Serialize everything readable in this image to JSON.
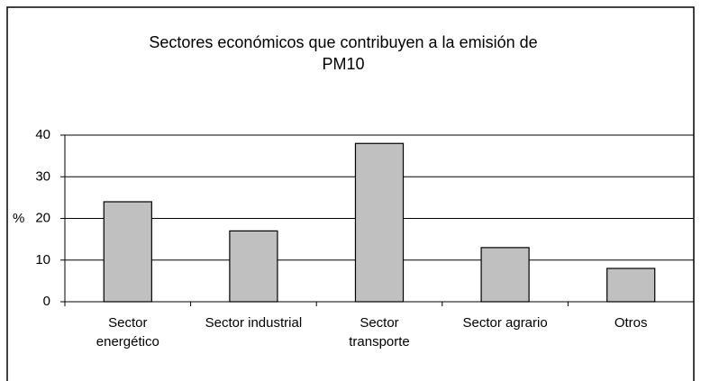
{
  "chart_data": {
    "type": "bar",
    "title": "Sectores económicos que contribuyen a la emisión de\nPM10",
    "y_label": "%",
    "categories": [
      "Sector\nenergético",
      "Sector industrial",
      "Sector\ntransporte",
      "Sector agrario",
      "Otros"
    ],
    "values": [
      24,
      17,
      38,
      13,
      8
    ],
    "color": "#c0c0c0",
    "ylim": [
      0,
      40
    ],
    "yticks": [
      0,
      10,
      20,
      30,
      40
    ],
    "grid": true
  }
}
